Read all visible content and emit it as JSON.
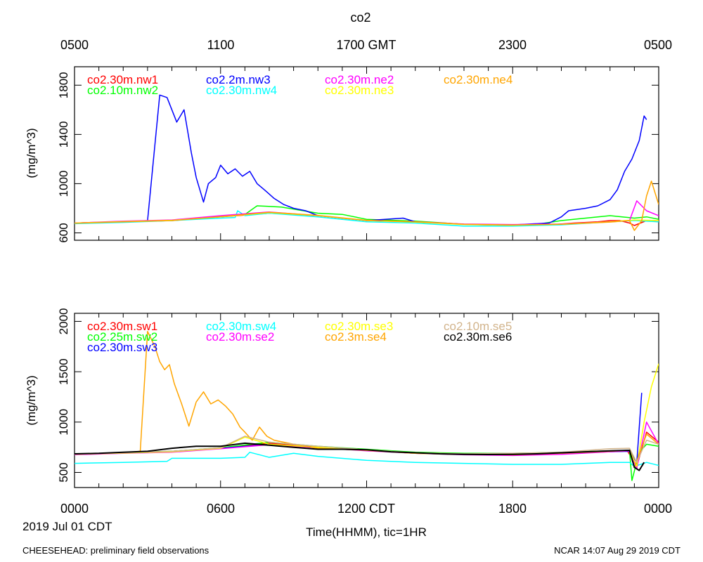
{
  "title": "co2",
  "top_axis_labels": [
    "0500",
    "1100",
    "1700 GMT",
    "2300",
    "0500"
  ],
  "bottom_axis_labels": [
    "0000",
    "0600",
    "1200 CDT",
    "1800",
    "0000"
  ],
  "date_label": "2019 Jul 01 CDT",
  "xlabel": "Time(HHMM), tic=1HR",
  "footer_left": "CHEESEHEAD: preliminary field observations",
  "footer_right": "NCAR 14:07 Aug 29 2019 CDT",
  "chart_data": [
    {
      "type": "line",
      "panel": "top",
      "ylabel": "(mg/m^3)",
      "xlim": [
        0,
        24
      ],
      "ylim": [
        540,
        1950
      ],
      "yticks": [
        600,
        1000,
        1400,
        1800
      ],
      "series": [
        {
          "name": "co2.30m.nw1",
          "color": "#ff0000",
          "x": [
            0,
            2,
            4,
            6,
            8,
            10,
            12,
            14,
            16,
            18,
            19.5,
            20.5,
            21.5,
            22,
            22.4,
            22.8,
            23,
            23.5,
            24
          ],
          "y": [
            680,
            690,
            700,
            730,
            760,
            740,
            700,
            690,
            670,
            660,
            665,
            680,
            690,
            700,
            700,
            680,
            660,
            700,
            690
          ]
        },
        {
          "name": "co2.10m.nw2",
          "color": "#00ff00",
          "x": [
            0,
            2,
            4,
            6,
            7,
            7.5,
            8.5,
            10,
            11,
            12,
            14,
            16,
            18,
            19,
            20,
            21,
            22,
            22.5,
            23,
            23.5,
            24
          ],
          "y": [
            680,
            690,
            700,
            735,
            750,
            820,
            810,
            760,
            750,
            710,
            695,
            670,
            665,
            670,
            700,
            720,
            740,
            730,
            720,
            730,
            710
          ]
        },
        {
          "name": "co2.2m.nw3",
          "color": "#0000ff",
          "x": [
            0,
            2,
            3,
            3.5,
            3.8,
            4.2,
            4.5,
            4.8,
            5,
            5.3,
            5.5,
            5.8,
            6,
            6.3,
            6.6,
            6.9,
            7.2,
            7.5,
            7.8,
            8.2,
            8.6,
            9,
            9.5,
            10,
            12,
            13.5,
            14,
            16,
            18,
            19.5,
            20,
            20.3,
            21,
            21.5,
            22,
            22.3,
            22.6,
            22.9,
            23.2,
            23.4,
            23.5
          ],
          "y": [
            680,
            690,
            700,
            1720,
            1700,
            1500,
            1600,
            1250,
            1050,
            850,
            1000,
            1050,
            1150,
            1080,
            1120,
            1060,
            1100,
            1000,
            950,
            880,
            830,
            800,
            780,
            740,
            700,
            720,
            690,
            670,
            665,
            680,
            730,
            780,
            800,
            820,
            870,
            950,
            1100,
            1200,
            1350,
            1550,
            1520
          ]
        },
        {
          "name": "co2.30m.nw4",
          "color": "#00ffff",
          "x": [
            0,
            2,
            4,
            6,
            6.6,
            6.7,
            7,
            8,
            10,
            12,
            14,
            16,
            18,
            20,
            22,
            23,
            24
          ],
          "y": [
            675,
            685,
            700,
            720,
            725,
            780,
            740,
            760,
            730,
            690,
            680,
            655,
            655,
            665,
            690,
            700,
            690
          ]
        },
        {
          "name": "co2.30m.ne2",
          "color": "#ff00ff",
          "x": [
            0,
            2,
            4,
            6,
            8,
            10,
            12,
            14,
            16,
            18,
            20,
            22,
            22.8,
            23.1,
            23.5,
            24
          ],
          "y": [
            680,
            695,
            705,
            740,
            770,
            740,
            700,
            690,
            672,
            668,
            672,
            690,
            700,
            860,
            780,
            740
          ]
        },
        {
          "name": "co2.30m.ne3",
          "color": "#ffff00",
          "x": [
            0,
            2,
            4,
            6,
            8,
            10,
            12,
            14,
            16,
            18,
            20,
            22,
            23,
            24
          ],
          "y": [
            680,
            692,
            702,
            730,
            765,
            740,
            700,
            688,
            668,
            662,
            670,
            690,
            705,
            700
          ]
        },
        {
          "name": "co2.30m.ne4",
          "color": "#ffa500",
          "x": [
            0,
            2,
            4,
            6,
            8,
            10,
            12,
            14,
            16,
            18,
            20,
            22,
            22.8,
            23,
            23.3,
            23.5,
            23.7,
            24
          ],
          "y": [
            678,
            690,
            700,
            732,
            768,
            742,
            702,
            690,
            670,
            664,
            670,
            688,
            700,
            620,
            700,
            900,
            1020,
            830
          ]
        }
      ]
    },
    {
      "type": "line",
      "panel": "bottom",
      "ylabel": "(mg/m^3)",
      "xlim": [
        0,
        24
      ],
      "ylim": [
        350,
        2080
      ],
      "yticks": [
        500,
        1000,
        1500,
        2000
      ],
      "series": [
        {
          "name": "co2.30m.sw1",
          "color": "#ff0000",
          "x": [
            0,
            2,
            4,
            6,
            8,
            10,
            12,
            14,
            16,
            18,
            20,
            22,
            22.7,
            23.1,
            23.5,
            24
          ],
          "y": [
            680,
            695,
            710,
            740,
            790,
            750,
            720,
            690,
            680,
            675,
            690,
            710,
            720,
            560,
            900,
            800
          ]
        },
        {
          "name": "co2.25m.sw2",
          "color": "#00ff00",
          "x": [
            0,
            2,
            4,
            6,
            8,
            10,
            12,
            14,
            16,
            18,
            20,
            22,
            22.8,
            22.9,
            23.2,
            23.5,
            24
          ],
          "y": [
            680,
            695,
            710,
            745,
            800,
            760,
            730,
            700,
            690,
            690,
            700,
            715,
            720,
            420,
            700,
            780,
            760
          ]
        },
        {
          "name": "co2.30m.sw3",
          "color": "#0000ff",
          "x": [
            0,
            2,
            4,
            6,
            8,
            10,
            12,
            14,
            16,
            18,
            20,
            22,
            22.8,
            23.1,
            23.3
          ],
          "y": [
            680,
            695,
            705,
            740,
            780,
            745,
            720,
            690,
            680,
            675,
            690,
            705,
            710,
            600,
            1290
          ]
        },
        {
          "name": "co2.30m.sw4",
          "color": "#00ffff",
          "x": [
            0,
            2,
            3.8,
            4,
            6,
            7,
            7.2,
            8,
            9,
            10,
            12,
            14,
            16,
            18,
            20,
            22,
            22.8,
            23,
            23.5,
            24
          ],
          "y": [
            590,
            600,
            610,
            640,
            640,
            650,
            700,
            650,
            690,
            660,
            620,
            600,
            590,
            580,
            580,
            600,
            600,
            560,
            600,
            570
          ]
        },
        {
          "name": "co2.30m.se2",
          "color": "#ff00ff",
          "x": [
            0,
            2,
            4,
            6,
            8,
            10,
            12,
            14,
            16,
            18,
            20,
            22,
            22.8,
            23.1,
            23.5,
            24
          ],
          "y": [
            675,
            690,
            700,
            735,
            775,
            745,
            715,
            690,
            675,
            668,
            680,
            705,
            715,
            540,
            1000,
            780
          ]
        },
        {
          "name": "co2.30m.se3",
          "color": "#ffff00",
          "x": [
            0,
            2,
            4,
            6,
            7,
            8,
            10,
            12,
            14,
            16,
            18,
            20,
            22,
            22.8,
            23.1,
            23.4,
            23.7,
            24
          ],
          "y": [
            680,
            692,
            705,
            740,
            850,
            780,
            750,
            720,
            690,
            680,
            680,
            695,
            715,
            720,
            560,
            1000,
            1350,
            1580
          ]
        },
        {
          "name": "co2.3m.se4",
          "color": "#ffa500",
          "x": [
            0,
            2,
            2.7,
            3,
            3.3,
            3.5,
            3.7,
            3.9,
            4.1,
            4.4,
            4.7,
            5,
            5.3,
            5.6,
            5.9,
            6.2,
            6.5,
            6.8,
            7,
            7.3,
            7.6,
            7.9,
            8.2,
            8.6,
            9,
            10,
            12,
            14,
            16,
            18,
            20,
            22,
            22.8,
            23,
            23.5,
            24
          ],
          "y": [
            680,
            695,
            710,
            1900,
            1750,
            1600,
            1520,
            1570,
            1380,
            1180,
            960,
            1200,
            1300,
            1180,
            1220,
            1160,
            1080,
            950,
            900,
            820,
            950,
            860,
            820,
            800,
            780,
            740,
            720,
            690,
            680,
            675,
            690,
            710,
            720,
            550,
            880,
            780
          ]
        },
        {
          "name": "co2.10m.se5",
          "color": "#d2b48c",
          "x": [
            0,
            2,
            4,
            6,
            7,
            8,
            10,
            12,
            14,
            16,
            18,
            20,
            22,
            22.8,
            23.1,
            23.5,
            24
          ],
          "y": [
            680,
            695,
            710,
            745,
            860,
            800,
            760,
            725,
            695,
            685,
            690,
            700,
            735,
            740,
            600,
            820,
            780
          ]
        },
        {
          "name": "co2.30m.se6",
          "color": "#000000",
          "x": [
            0,
            1,
            2,
            3,
            4,
            5,
            6,
            7,
            8,
            9,
            10,
            11,
            12,
            13,
            14,
            15,
            16,
            17,
            18,
            19,
            20,
            21,
            22,
            22.8,
            23,
            23.2,
            23.4
          ],
          "y": [
            685,
            690,
            700,
            710,
            740,
            760,
            760,
            790,
            770,
            750,
            730,
            730,
            725,
            705,
            695,
            685,
            680,
            678,
            680,
            685,
            695,
            705,
            715,
            720,
            550,
            520,
            600
          ]
        }
      ]
    }
  ]
}
